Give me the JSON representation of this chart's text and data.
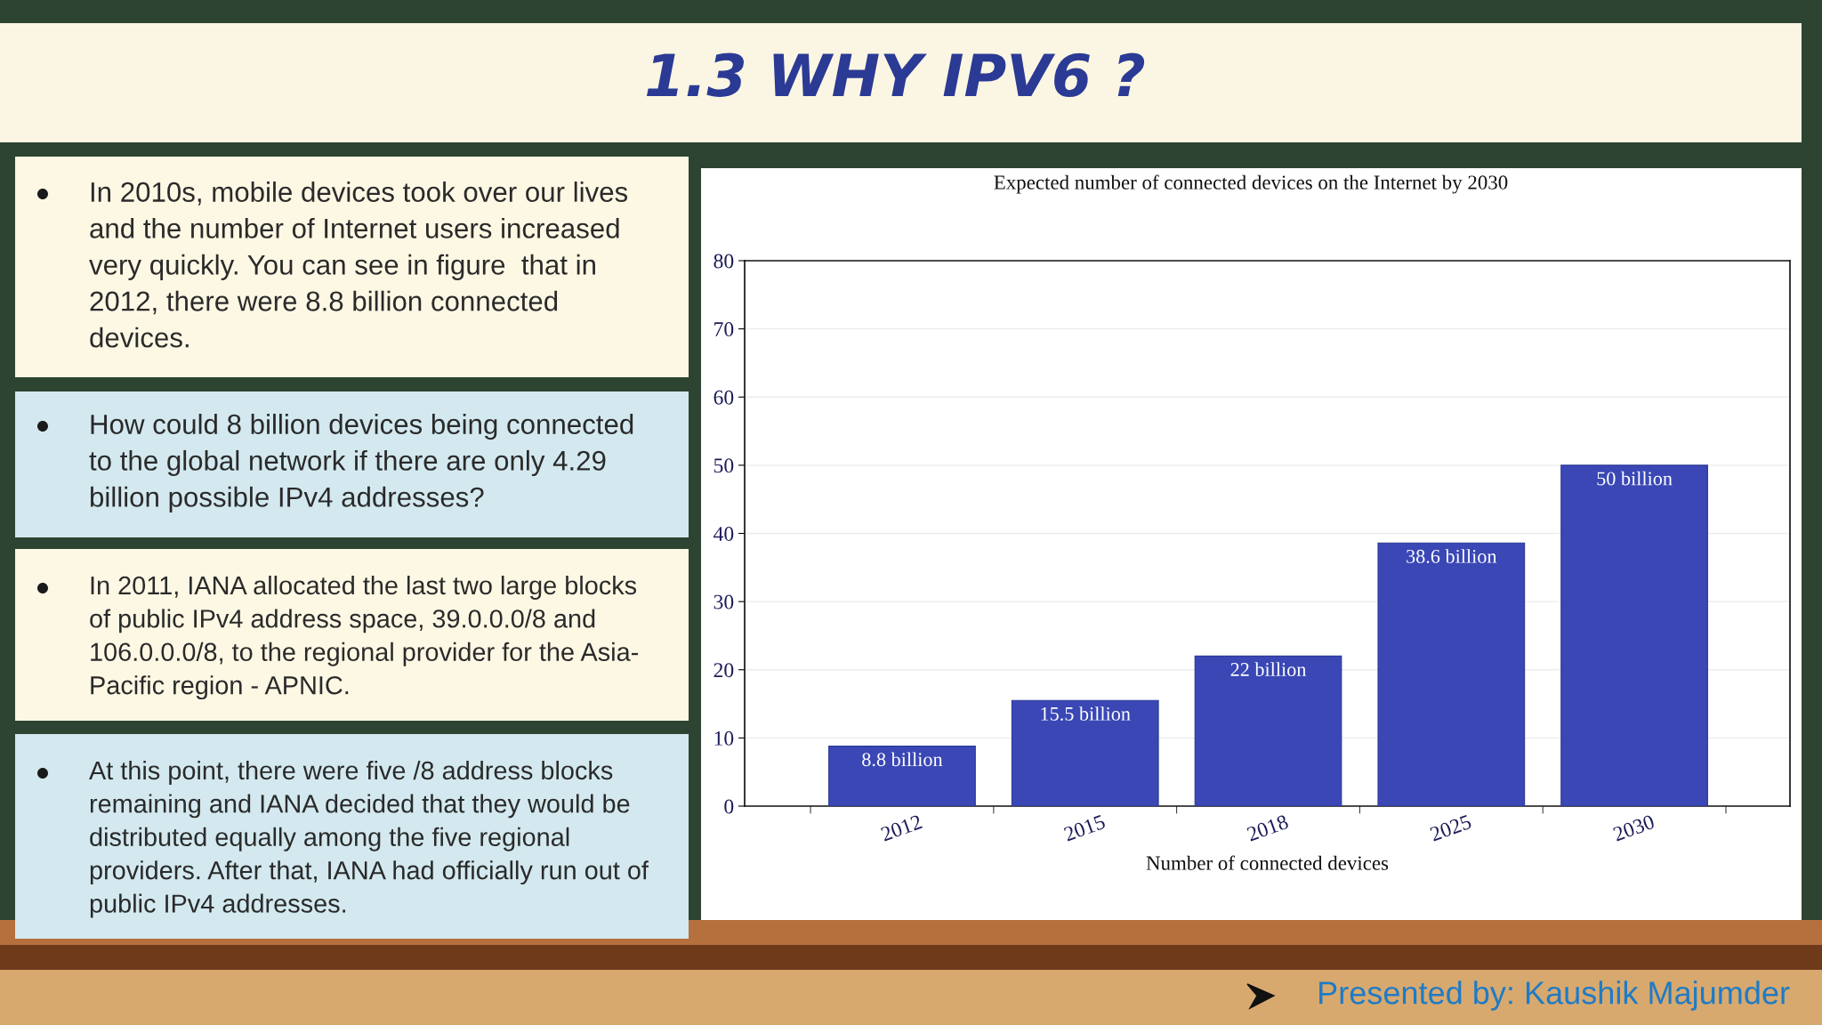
{
  "chart_data": {
    "type": "bar",
    "title": "1.3 WHY IPV6 ?",
    "subtitle": "Expected number of connected devices on the Internet by 2030",
    "xlabel": "Number of connected devices",
    "categories": [
      "2012",
      "2015",
      "2018",
      "2025",
      "2030"
    ],
    "values": [
      8.8,
      15.5,
      22,
      38.6,
      50
    ],
    "value_labels": [
      "8.8 billion",
      "15.5 billion",
      "22 billion",
      "38.6 billion",
      "50 billion"
    ],
    "color": "#3a47b5",
    "ylim": [
      0,
      80
    ],
    "yticks": [
      0,
      10,
      20,
      30,
      40,
      50,
      60,
      70,
      80
    ],
    "grid": "y",
    "annotations": [
      "In 2010s, mobile devices took over our lives\nand the number of Internet users increased\nvery quickly. You can see in figure  that in\n2012, there were 8.8 billion connected\ndevices.",
      "How could 8 billion devices being connected\nto the global network if there are only 4.29\nbillion possible IPv4 addresses?",
      "In 2011, IANA allocated the last two large blocks\nof public IPv4 address space, 39.0.0.0/8 and\n106.0.0.0/8, to the regional provider for the Asia-\nPacific region - APNIC.",
      "At this point, there were five /8 address blocks\nremaining and IANA decided that they would be\ndistributed equally among the five regional\nproviders. After that, IANA had officially run out of\npublic IPv4 addresses.",
      "Presented by: Kaushik Majumder"
    ]
  }
}
